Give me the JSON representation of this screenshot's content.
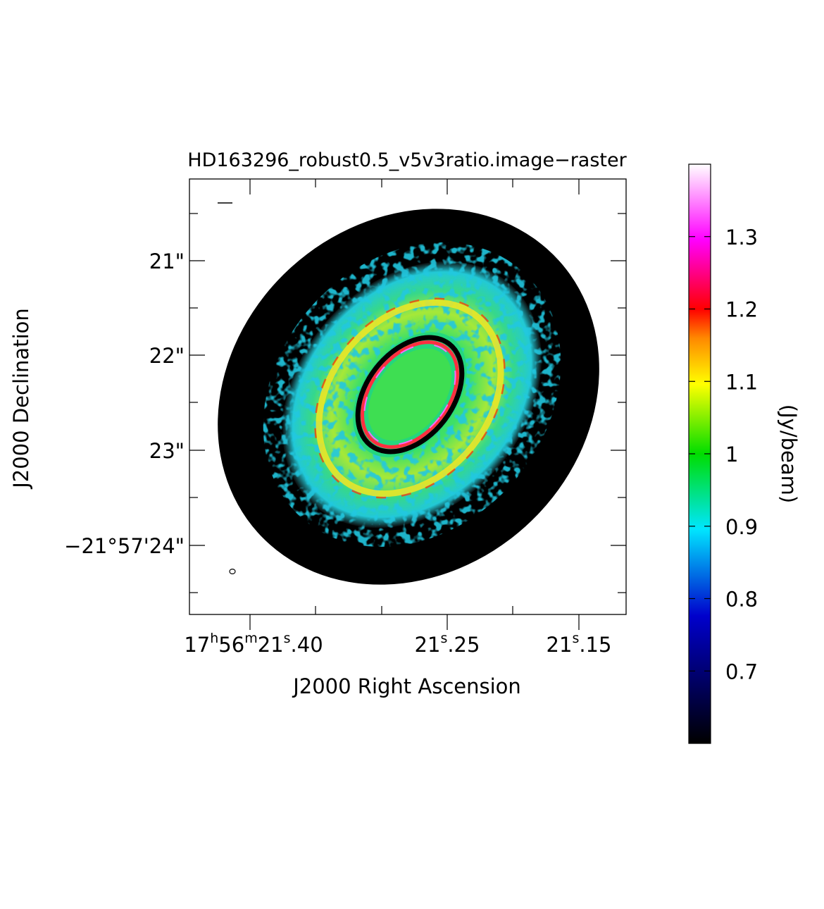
{
  "chart_data": {
    "type": "heatmap",
    "title": "HD163296_robust0.5_v5v3ratio.image−raster",
    "xlabel": "J2000 Right Ascension",
    "ylabel": "J2000 Declination",
    "x_ticks": [
      {
        "h": "17",
        "m": "56",
        "s": "21",
        "frac": ".40",
        "value": 21.4
      },
      {
        "s": "21",
        "frac": ".25",
        "value": 21.25
      },
      {
        "s": "21",
        "frac": ".15",
        "value": 21.15
      }
    ],
    "y_ticks": [
      {
        "label": "21\"",
        "value": 21
      },
      {
        "label": "22\"",
        "value": 22
      },
      {
        "label": "23\"",
        "value": 23
      },
      {
        "label": "−21°57'24\"",
        "value": 24
      }
    ],
    "colorbar": {
      "label": "(Jy/beam)",
      "range": [
        0.6,
        1.4
      ],
      "ticks": [
        {
          "label": "0.7",
          "value": 0.7
        },
        {
          "label": "0.8",
          "value": 0.8
        },
        {
          "label": "0.9",
          "value": 0.9
        },
        {
          "label": "1",
          "value": 1.0
        },
        {
          "label": "1.1",
          "value": 1.1
        },
        {
          "label": "1.2",
          "value": 1.2
        },
        {
          "label": "1.3",
          "value": 1.3
        }
      ],
      "colormap": [
        "#000000",
        "#0000cc",
        "#00e6ff",
        "#00dd00",
        "#ffff00",
        "#ff8800",
        "#ff0000",
        "#ff00ff",
        "#ffffff"
      ]
    },
    "background_color": "#000000",
    "grid": false
  }
}
